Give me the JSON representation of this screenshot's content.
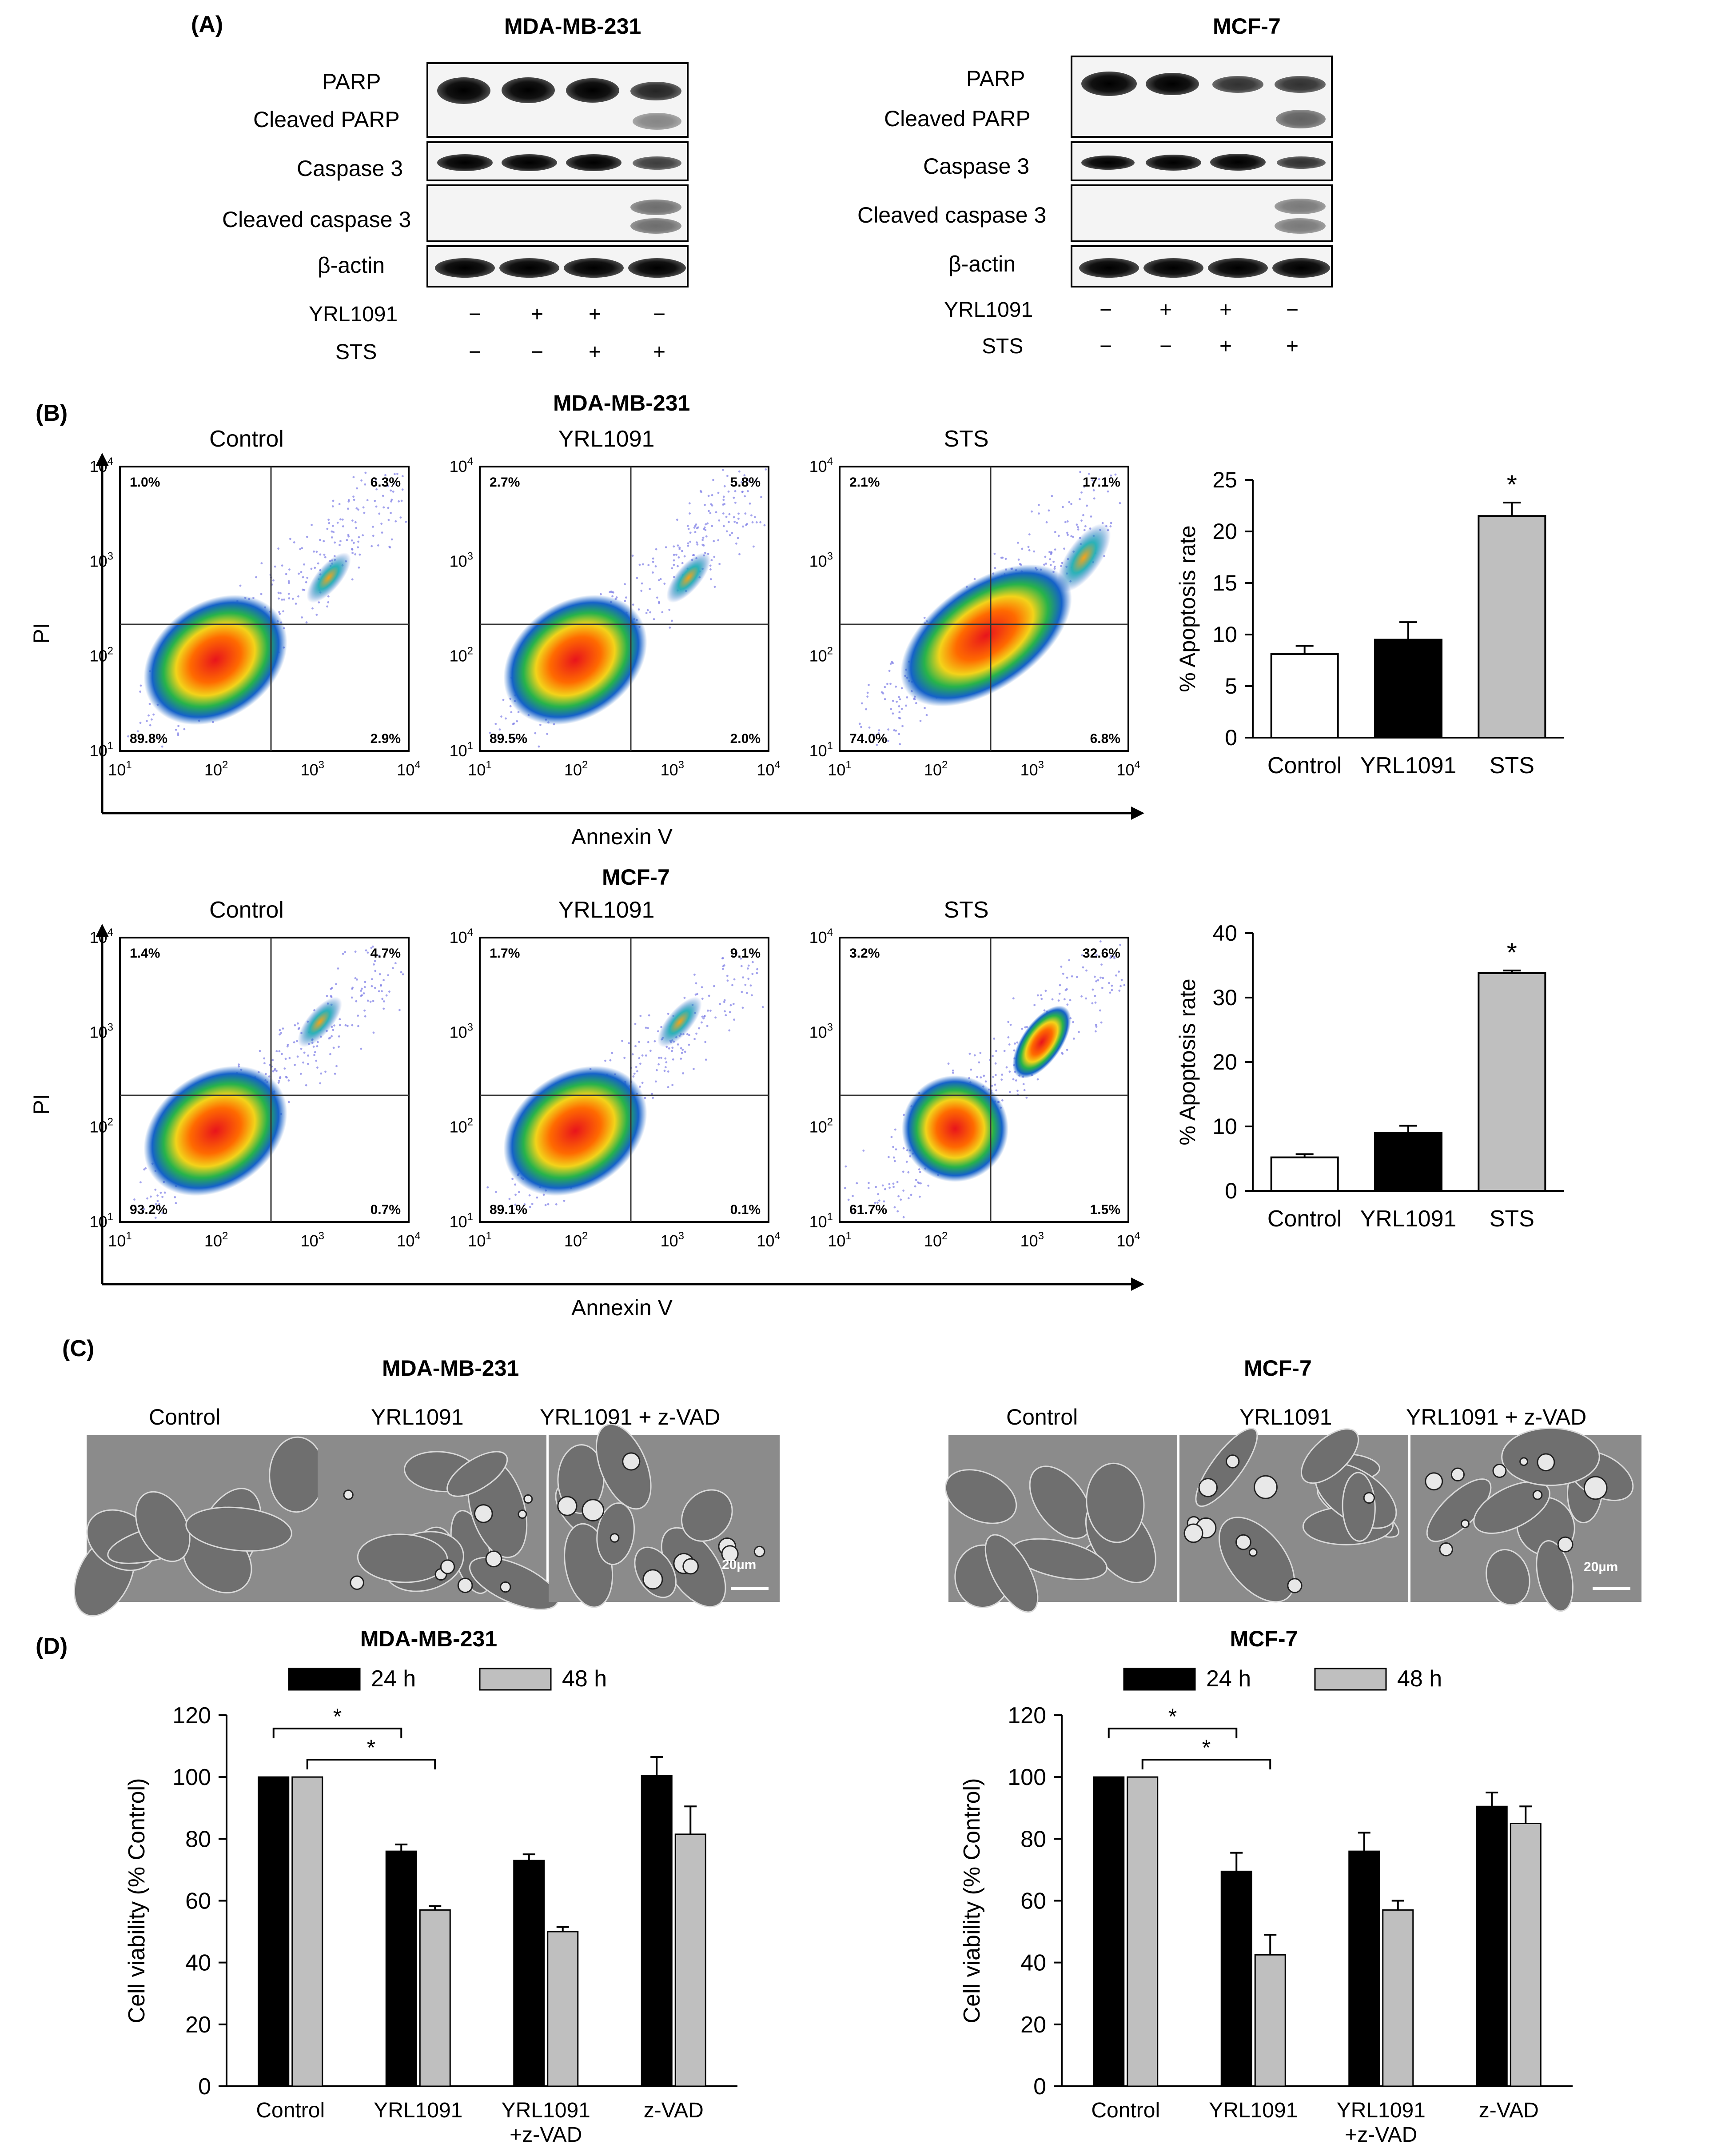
{
  "panelA": {
    "label": "(A)",
    "blots": [
      {
        "title": "MDA-MB-231",
        "labels": [
          "PARP",
          "Cleaved PARP",
          "Caspase 3",
          "Cleaved caspase 3",
          "β-actin"
        ],
        "treatments": [
          {
            "name": "YRL1091",
            "signs": [
              "−",
              "+",
              "+",
              "−"
            ]
          },
          {
            "name": "STS",
            "signs": [
              "−",
              "−",
              "+",
              "+"
            ]
          }
        ]
      },
      {
        "title": "MCF-7",
        "labels": [
          "PARP",
          "Cleaved PARP",
          "Caspase 3",
          "Cleaved caspase 3",
          "β-actin"
        ],
        "treatments": [
          {
            "name": "YRL1091",
            "signs": [
              "−",
              "+",
              "+",
              "−"
            ]
          },
          {
            "name": "STS",
            "signs": [
              "−",
              "−",
              "+",
              "+"
            ]
          }
        ]
      }
    ]
  },
  "panelB": {
    "label": "(B)",
    "rows": [
      {
        "cell_line": "MDA-MB-231",
        "xaxis": "Annexin V",
        "yaxis": "PI",
        "plots": [
          {
            "title": "Control",
            "q": [
              "1.0%",
              "6.3%",
              "89.8%",
              "2.9%"
            ]
          },
          {
            "title": "YRL1091",
            "q": [
              "2.7%",
              "5.8%",
              "89.5%",
              "2.0%"
            ]
          },
          {
            "title": "STS",
            "q": [
              "2.1%",
              "17.1%",
              "74.0%",
              "6.8%"
            ]
          }
        ]
      },
      {
        "cell_line": "MCF-7",
        "xaxis": "Annexin V",
        "yaxis": "PI",
        "plots": [
          {
            "title": "Control",
            "q": [
              "1.4%",
              "4.7%",
              "93.2%",
              "0.7%"
            ]
          },
          {
            "title": "YRL1091",
            "q": [
              "1.7%",
              "9.1%",
              "89.1%",
              "0.1%"
            ]
          },
          {
            "title": "STS",
            "q": [
              "3.2%",
              "32.6%",
              "61.7%",
              "1.5%"
            ]
          }
        ]
      }
    ],
    "ticks": {
      "base": "10",
      "exps": [
        "1",
        "2",
        "3",
        "4"
      ]
    }
  },
  "panelC": {
    "label": "(C)",
    "groups": [
      {
        "title": "MDA-MB-231",
        "images": [
          "Control",
          "YRL1091",
          "YRL1091 + z-VAD"
        ],
        "scale": "20µm"
      },
      {
        "title": "MCF-7",
        "images": [
          "Control",
          "YRL1091",
          "YRL1091 + z-VAD"
        ],
        "scale": "20µm"
      }
    ]
  },
  "panelD": {
    "label": "(D)"
  },
  "chart_data": [
    {
      "type": "bar",
      "title": "",
      "xlabel": "",
      "ylabel": "% Apoptosis rate",
      "categories": [
        "Control",
        "YRL1091",
        "STS"
      ],
      "values": [
        8.1,
        9.5,
        21.5
      ],
      "errors": [
        0.8,
        1.7,
        1.3
      ],
      "colors": [
        "#ffffff",
        "#000000",
        "#bfbfbf"
      ],
      "ylim": [
        0,
        25
      ],
      "yticks": [
        0,
        5,
        10,
        15,
        20,
        25
      ],
      "significance": [
        "",
        "",
        "*"
      ]
    },
    {
      "type": "bar",
      "title": "",
      "xlabel": "",
      "ylabel": "% Apoptosis rate",
      "categories": [
        "Control",
        "YRL1091",
        "STS"
      ],
      "values": [
        5.2,
        9.0,
        33.8
      ],
      "errors": [
        0.5,
        1.1,
        0.4
      ],
      "colors": [
        "#ffffff",
        "#000000",
        "#bfbfbf"
      ],
      "ylim": [
        0,
        40
      ],
      "yticks": [
        0,
        10,
        20,
        30,
        40
      ],
      "significance": [
        "",
        "",
        "*"
      ]
    },
    {
      "type": "bar",
      "title": "MDA-MB-231",
      "xlabel": "",
      "ylabel": "Cell viability (% Control)",
      "categories": [
        "Control",
        "YRL1091",
        "YRL1091\n+z-VAD",
        "z-VAD"
      ],
      "series": [
        {
          "name": "24 h",
          "color": "#000000",
          "values": [
            100,
            76,
            73,
            100.5
          ],
          "errors": [
            0,
            2.2,
            2,
            6
          ]
        },
        {
          "name": "48 h",
          "color": "#bfbfbf",
          "values": [
            100,
            57,
            50,
            81.5
          ],
          "errors": [
            0,
            1.3,
            1.5,
            9
          ]
        }
      ],
      "ylim": [
        0,
        120
      ],
      "yticks": [
        0,
        20,
        40,
        60,
        80,
        100,
        120
      ],
      "brackets": [
        {
          "from": [
            0,
            0
          ],
          "to": [
            1,
            0
          ],
          "label": "*"
        },
        {
          "from": [
            0,
            1
          ],
          "to": [
            1,
            1
          ],
          "label": "*"
        }
      ]
    },
    {
      "type": "bar",
      "title": "MCF-7",
      "xlabel": "",
      "ylabel": "Cell viability (% Control)",
      "categories": [
        "Control",
        "YRL1091",
        "YRL1091\n+z-VAD",
        "z-VAD"
      ],
      "series": [
        {
          "name": "24 h",
          "color": "#000000",
          "values": [
            100,
            69.5,
            76,
            90.5
          ],
          "errors": [
            0,
            6,
            6,
            4.5
          ]
        },
        {
          "name": "48 h",
          "color": "#bfbfbf",
          "values": [
            100,
            42.5,
            57,
            85
          ],
          "errors": [
            0,
            6.5,
            3,
            5.5
          ]
        }
      ],
      "ylim": [
        0,
        120
      ],
      "yticks": [
        0,
        20,
        40,
        60,
        80,
        100,
        120
      ],
      "brackets": [
        {
          "from": [
            0,
            0
          ],
          "to": [
            1,
            0
          ],
          "label": "*"
        },
        {
          "from": [
            0,
            1
          ],
          "to": [
            1,
            1
          ],
          "label": "*"
        }
      ]
    }
  ]
}
